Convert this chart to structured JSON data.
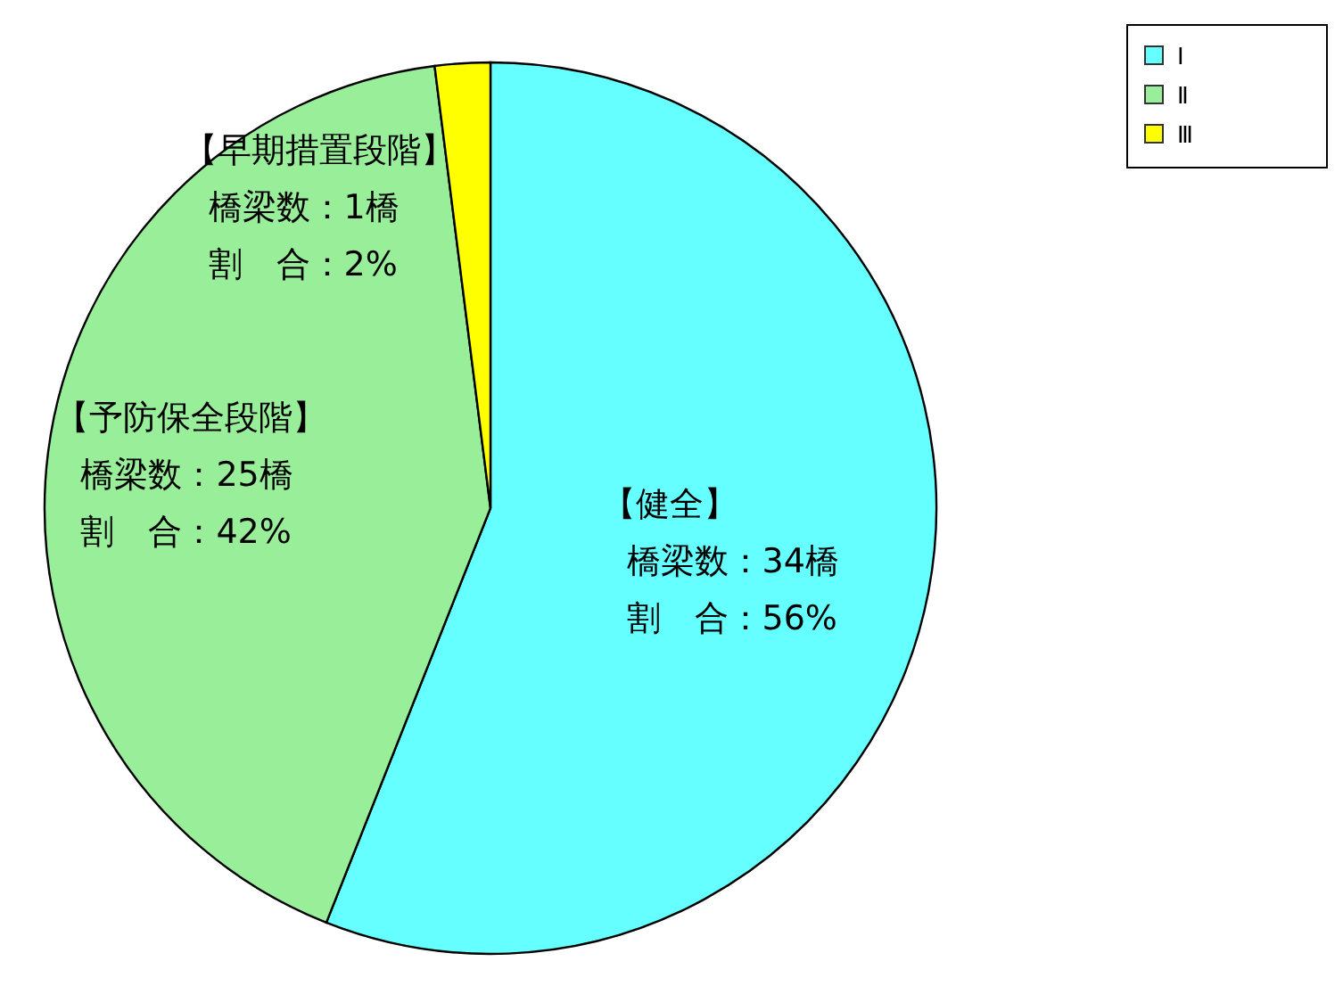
{
  "chart_data": {
    "type": "pie",
    "categories": [
      "Ⅰ",
      "Ⅱ",
      "Ⅲ"
    ],
    "values": [
      56,
      42,
      2
    ],
    "colors": [
      "#66ffff",
      "#99ee99",
      "#ffff00"
    ],
    "legend": "top right",
    "annotations": [
      "【健全】",
      "橋梁数：34橋",
      "割　合：56%",
      "【予防保全段階】",
      "橋梁数：25橋",
      "割　合：42%",
      "【早期措置段階】",
      "橋梁数：1橋",
      "割　合：2%"
    ]
  }
}
